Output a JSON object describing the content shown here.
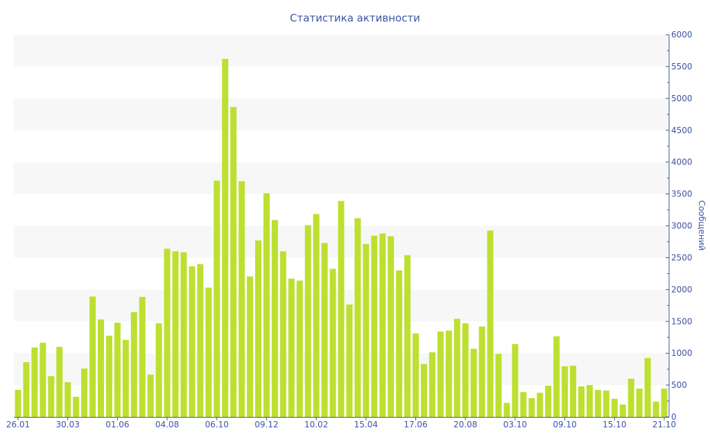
{
  "chart_data": {
    "type": "bar",
    "title": "Статистика активности",
    "xlabel": "",
    "ylabel": "Сообщений",
    "ylim": [
      0,
      6000
    ],
    "y_ticks": [
      0,
      500,
      1000,
      1500,
      2000,
      2500,
      3000,
      3500,
      4000,
      4500,
      5000,
      5500,
      6000
    ],
    "y_axis_position": "right",
    "x_tick_labels": [
      {
        "bar": 0,
        "label": "26.01"
      },
      {
        "bar": 6,
        "label": "30.03"
      },
      {
        "bar": 12,
        "label": "01.06"
      },
      {
        "bar": 18,
        "label": "04.08"
      },
      {
        "bar": 24,
        "label": "06.10"
      },
      {
        "bar": 30,
        "label": "09.12"
      },
      {
        "bar": 36,
        "label": "10.02"
      },
      {
        "bar": 42,
        "label": "15.04"
      },
      {
        "bar": 48,
        "label": "17.06"
      },
      {
        "bar": 54,
        "label": "20.08"
      },
      {
        "bar": 60,
        "label": "03.10"
      },
      {
        "bar": 66,
        "label": "09.10"
      },
      {
        "bar": 72,
        "label": "15.10"
      },
      {
        "bar": 78,
        "label": "21.10"
      }
    ],
    "grid": "alternating horizontal bands",
    "colors": {
      "bar": "#bde030",
      "band": "#f7f7f7",
      "axis": "#3e54a3"
    },
    "values": [
      425,
      860,
      1090,
      1165,
      640,
      1100,
      545,
      315,
      760,
      1890,
      1530,
      1275,
      1480,
      1210,
      1645,
      1885,
      665,
      1470,
      2640,
      2600,
      2585,
      2365,
      2400,
      2030,
      3710,
      5620,
      4865,
      3700,
      2205,
      2770,
      3510,
      3090,
      2600,
      2170,
      2140,
      3010,
      3185,
      2730,
      2325,
      3390,
      1765,
      3120,
      2715,
      2845,
      2880,
      2835,
      2300,
      2540,
      1310,
      830,
      1015,
      1340,
      1355,
      1540,
      1470,
      1070,
      1420,
      2925,
      990,
      220,
      1145,
      390,
      295,
      380,
      490,
      1265,
      795,
      805,
      480,
      500,
      425,
      415,
      285,
      195,
      600,
      445,
      925,
      240,
      445
    ]
  }
}
